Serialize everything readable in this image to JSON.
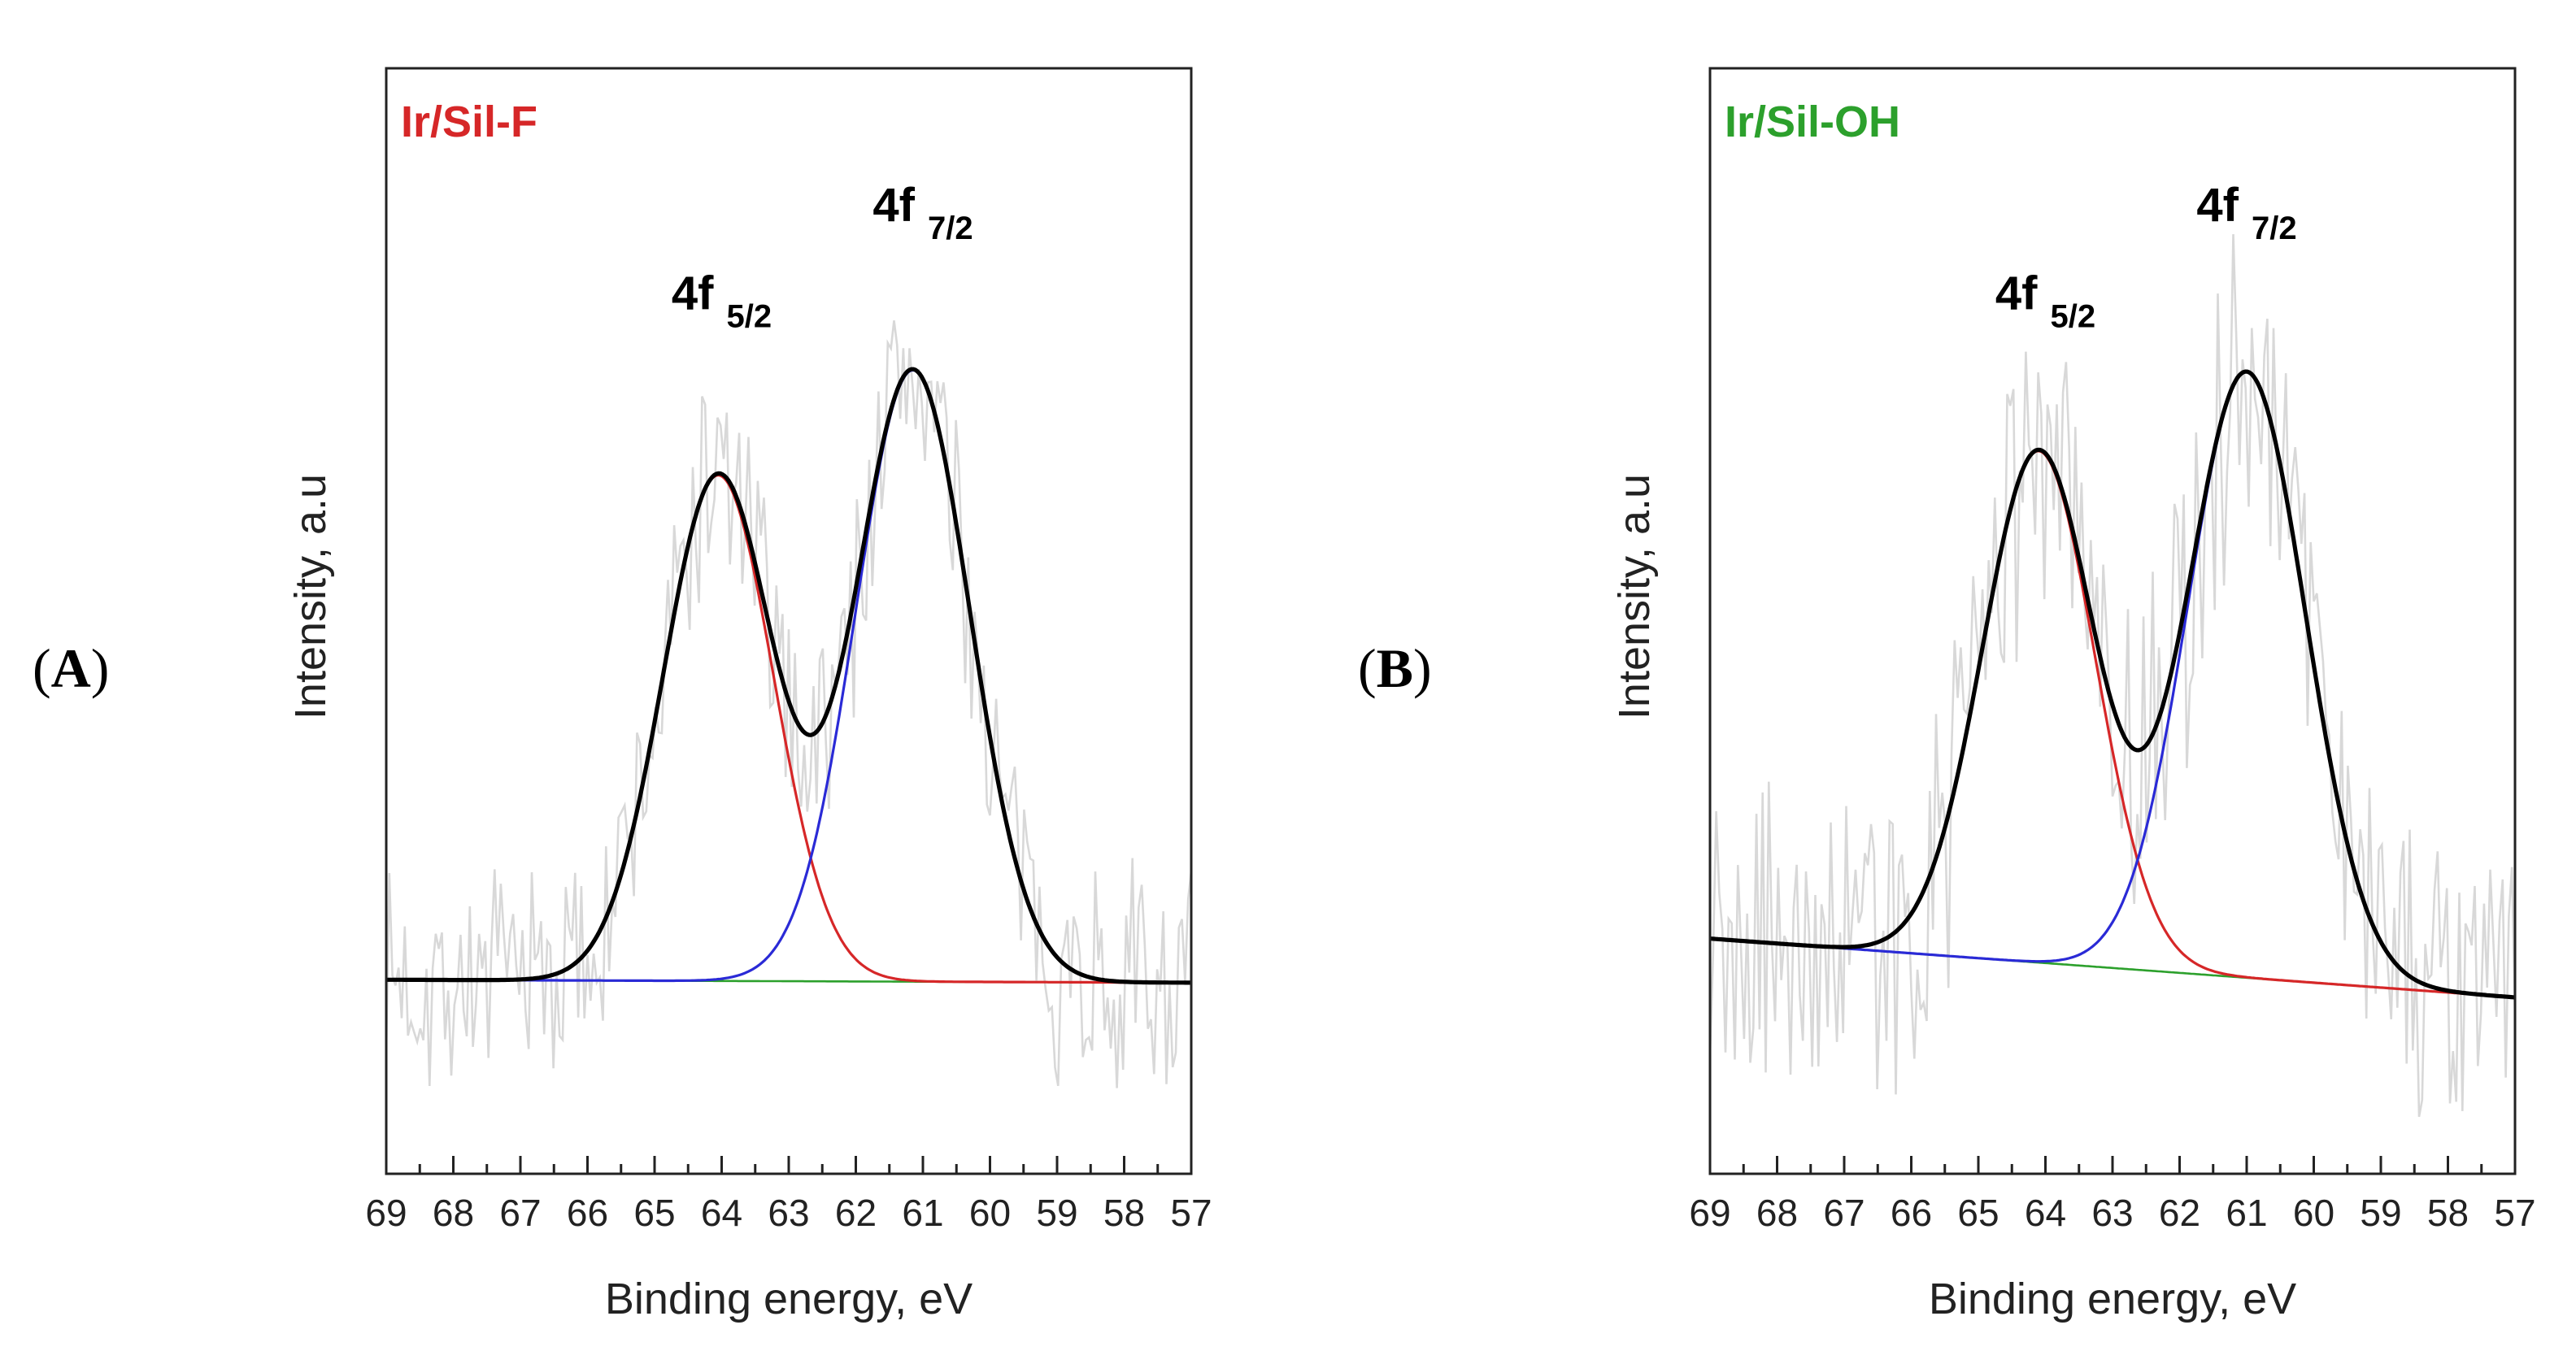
{
  "chart_data": [
    {
      "type": "line",
      "panel_label": "A",
      "sample_title": "Ir/Sil-F",
      "title_color": "#d62728",
      "xlabel": "Binding energy, eV",
      "ylabel": "Intensity, a.u",
      "x_range": [
        69,
        57
      ],
      "x_reversed": true,
      "y_range": [
        -0.33,
        1.55
      ],
      "x_ticks": [
        69,
        68,
        67,
        66,
        65,
        64,
        63,
        62,
        61,
        60,
        59,
        58,
        57
      ],
      "peak_labels": [
        {
          "main": "4f",
          "sub": "5/2",
          "x": 64.0,
          "y": 1.14
        },
        {
          "main": "4f",
          "sub": "7/2",
          "x": 61.0,
          "y": 1.29
        }
      ],
      "background": {
        "start": 0.0,
        "end": -0.005
      },
      "components": [
        {
          "name": "4f 5/2",
          "center": 64.05,
          "height": 0.86,
          "width": 0.82,
          "color": "#d62728"
        },
        {
          "name": "4f 7/2",
          "center": 61.15,
          "height": 1.04,
          "width": 0.85,
          "color": "#2a2ad6"
        }
      ],
      "envelope_color": "#000000",
      "background_color": "#2ca02c",
      "raw_color": "#d8d8d8",
      "noise_amplitude": 0.17,
      "noise_seed": 7
    },
    {
      "type": "line",
      "panel_label": "B",
      "sample_title": "Ir/Sil-OH",
      "title_color": "#2ca02c",
      "xlabel": "Binding energy, eV",
      "ylabel": "Intensity, a.u",
      "x_range": [
        69,
        57
      ],
      "x_reversed": true,
      "y_range": [
        -0.33,
        1.55
      ],
      "x_ticks": [
        69,
        68,
        67,
        66,
        65,
        64,
        63,
        62,
        61,
        60,
        59,
        58,
        57
      ],
      "peak_labels": [
        {
          "main": "4f",
          "sub": "5/2",
          "x": 64.0,
          "y": 1.14
        },
        {
          "main": "4f",
          "sub": "7/2",
          "x": 61.0,
          "y": 1.29
        }
      ],
      "background": {
        "start": 0.07,
        "end": -0.03
      },
      "components": [
        {
          "name": "4f 5/2",
          "center": 64.1,
          "height": 0.87,
          "width": 0.84,
          "color": "#d62728"
        },
        {
          "name": "4f 7/2",
          "center": 61.0,
          "height": 1.03,
          "width": 0.88,
          "color": "#2a2ad6"
        }
      ],
      "envelope_color": "#000000",
      "background_color": "#2ca02c",
      "raw_color": "#d8d8d8",
      "noise_amplitude": 0.25,
      "noise_seed": 19
    }
  ]
}
